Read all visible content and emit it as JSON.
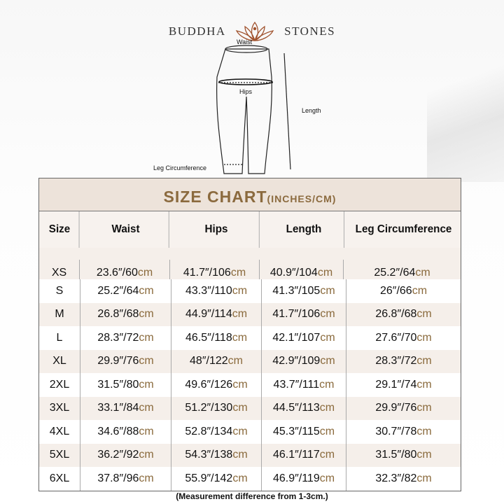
{
  "brand": {
    "left": "BUDDHA",
    "right": "STONES"
  },
  "diagram": {
    "waist": "Waist",
    "hips": "Hips",
    "length": "Length",
    "leg": "Leg Circumference"
  },
  "chart": {
    "title": "SIZE CHART",
    "unit_note": "(INCHES/CM)",
    "headers": [
      "Size",
      "Waist",
      "Hips",
      "Length",
      "Leg Circumference"
    ],
    "unit": "cm",
    "rows": [
      {
        "size": "XS",
        "cells": [
          "23.6″/60",
          "41.7″/106",
          "40.9″/104",
          "25.2″/64"
        ]
      },
      {
        "size": "S",
        "cells": [
          "25.2″/64",
          "43.3″/110",
          "41.3″/105",
          "26″/66"
        ]
      },
      {
        "size": "M",
        "cells": [
          "26.8″/68",
          "44.9″/114",
          "41.7″/106",
          "26.8″/68"
        ]
      },
      {
        "size": "L",
        "cells": [
          "28.3″/72",
          "46.5″/118",
          "42.1″/107",
          "27.6″/70"
        ]
      },
      {
        "size": "XL",
        "cells": [
          "29.9″/76",
          "48″/122",
          "42.9″/109",
          "28.3″/72"
        ]
      },
      {
        "size": "2XL",
        "cells": [
          "31.5″/80",
          "49.6″/126",
          "43.7″/111",
          "29.1″/74"
        ]
      },
      {
        "size": "3XL",
        "cells": [
          "33.1″/84",
          "51.2″/130",
          "44.5″/113",
          "29.9″/76"
        ]
      },
      {
        "size": "4XL",
        "cells": [
          "34.6″/88",
          "52.8″/134",
          "45.3″/115",
          "30.7″/78"
        ]
      },
      {
        "size": "5XL",
        "cells": [
          "36.2″/92",
          "54.3″/138",
          "46.1″/117",
          "31.5″/80"
        ]
      },
      {
        "size": "6XL",
        "cells": [
          "37.8″/96",
          "55.9″/142",
          "46.9″/119",
          "32.3″/82"
        ]
      }
    ]
  },
  "note": "(Measurement difference from 1-3cm.)",
  "colors": {
    "accent": "#8b6a3e",
    "title_band": "#ede3da",
    "row_alt": "#f5efea"
  }
}
